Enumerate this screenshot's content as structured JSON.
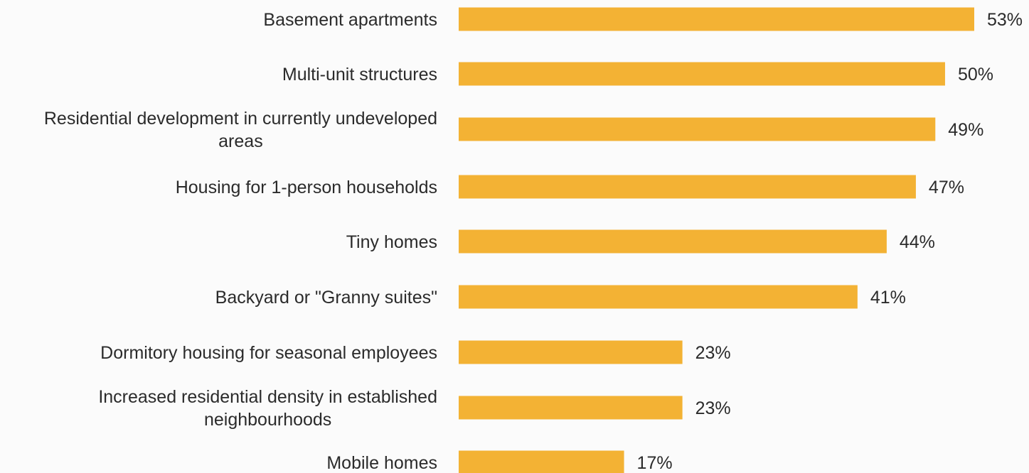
{
  "chart_data": {
    "type": "bar",
    "orientation": "horizontal",
    "categories": [
      [
        "Basement apartments"
      ],
      [
        "Multi-unit structures"
      ],
      [
        "Residential development in currently undeveloped",
        "areas"
      ],
      [
        "Housing for 1-person households"
      ],
      [
        "Tiny homes"
      ],
      [
        "Backyard or \"Granny suites\""
      ],
      [
        "Dormitory housing for seasonal employees"
      ],
      [
        "Increased residential density in established",
        "neighbourhoods"
      ],
      [
        "Mobile homes"
      ]
    ],
    "values": [
      53,
      50,
      49,
      47,
      44,
      41,
      23,
      23,
      17
    ],
    "value_labels": [
      "53%",
      "50%",
      "49%",
      "47%",
      "44%",
      "41%",
      "23%",
      "23%",
      "17%"
    ],
    "unit": "%",
    "xlim": [
      0,
      53
    ],
    "grid": false,
    "legend": "none",
    "colors": {
      "bar": "#f3b234",
      "text": "#2b2b2b"
    }
  }
}
